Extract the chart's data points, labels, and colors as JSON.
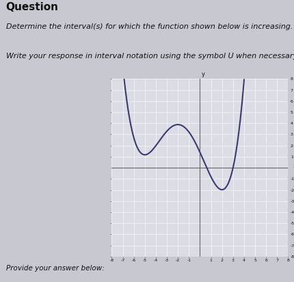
{
  "title": "Question",
  "subtitle1": "Determine the interval(s) for which the function shown below is increasing.",
  "subtitle2": "Write your response in interval notation using the symbol U when necessary.",
  "footer": "Provide your answer below:",
  "bg_color": "#c8c8d0",
  "grid_bg": "#dcdce4",
  "curve_color": "#3a3a70",
  "axis_color": "#666666",
  "text_color": "#111111",
  "xmin": -8,
  "xmax": 8,
  "ymin": -8,
  "ymax": 8,
  "title_fontsize": 11,
  "subtitle_fontsize": 8,
  "footer_fontsize": 7.5
}
